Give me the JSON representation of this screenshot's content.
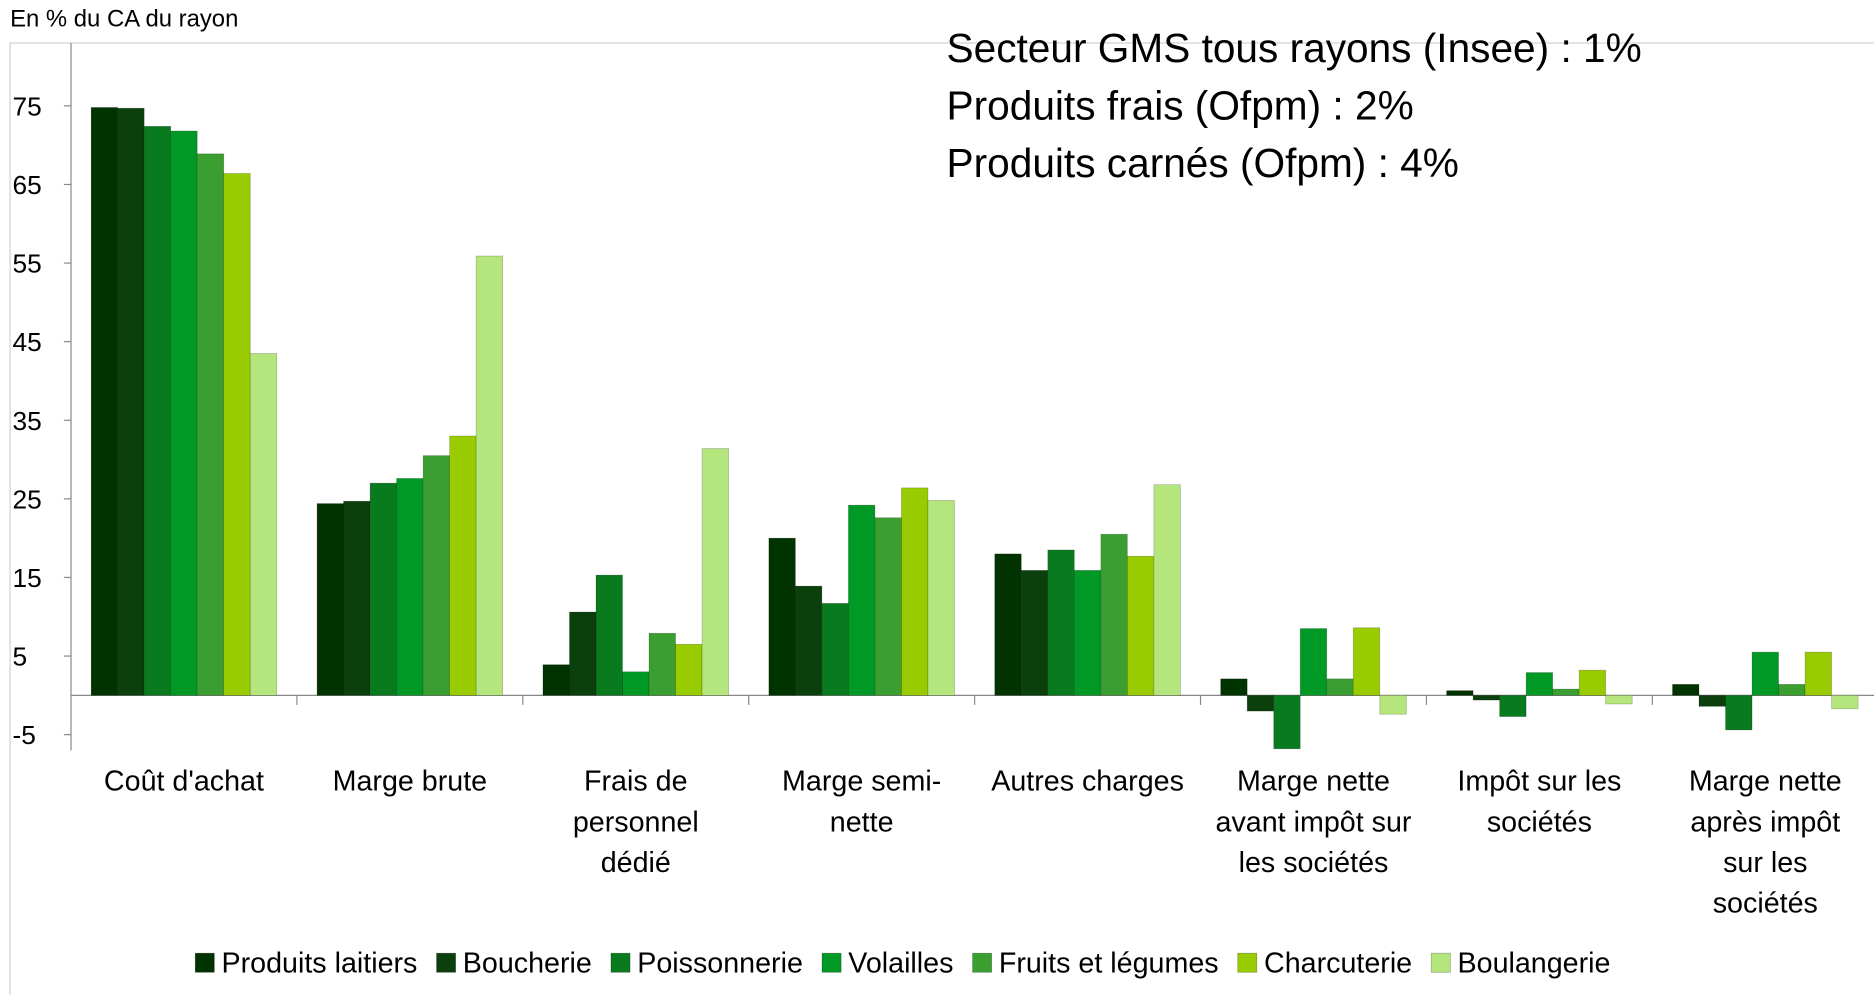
{
  "chart_data": {
    "type": "bar",
    "subtitle": "En % du CA du rayon",
    "annotations": [
      "Secteur GMS tous rayons (Insee) : 1%",
      "Produits frais (Ofpm) : 2%",
      "Produits carnés (Ofpm) : 4%"
    ],
    "categories": [
      "Coût d'achat",
      "Marge brute",
      "Frais de\npersonnel\ndédié",
      "Marge semi-\nnette",
      "Autres charges",
      "Marge nette\navant impôt sur\nles sociétés",
      "Impôt sur les\nsociétés",
      "Marge nette\naprès impôt\nsur les\nsociétés"
    ],
    "series": [
      {
        "name": "Produits laitiers",
        "color": "#003300",
        "values": [
          74.8,
          24.4,
          3.9,
          20.0,
          18.0,
          2.1,
          0.6,
          1.4
        ]
      },
      {
        "name": "Boucherie",
        "color": "#0b3f0b",
        "values": [
          74.7,
          24.7,
          10.6,
          13.9,
          15.9,
          -2.0,
          -0.6,
          -1.4
        ]
      },
      {
        "name": "Poissonnerie",
        "color": "#0a7a1e",
        "values": [
          72.4,
          27.0,
          15.3,
          11.7,
          18.5,
          -6.8,
          -2.7,
          -4.4
        ]
      },
      {
        "name": "Volailles",
        "color": "#009926",
        "values": [
          71.8,
          27.6,
          3.0,
          24.2,
          15.9,
          8.5,
          2.9,
          5.5
        ]
      },
      {
        "name": "Fruits et légumes",
        "color": "#3a9e30",
        "values": [
          68.9,
          30.5,
          7.9,
          22.6,
          20.5,
          2.1,
          0.8,
          1.4
        ]
      },
      {
        "name": "Charcuterie",
        "color": "#99cc00",
        "values": [
          66.4,
          33.0,
          6.5,
          26.4,
          17.7,
          8.6,
          3.2,
          5.5
        ]
      },
      {
        "name": "Boulangerie",
        "color": "#b5e67d",
        "values": [
          43.5,
          55.9,
          31.4,
          24.8,
          26.8,
          -2.4,
          -1.1,
          -1.7
        ]
      }
    ],
    "ylim": [
      -7,
      83
    ],
    "yticks": [
      -5,
      5,
      15,
      25,
      35,
      45,
      55,
      65,
      75
    ],
    "grid": false,
    "legend": "bottom"
  }
}
